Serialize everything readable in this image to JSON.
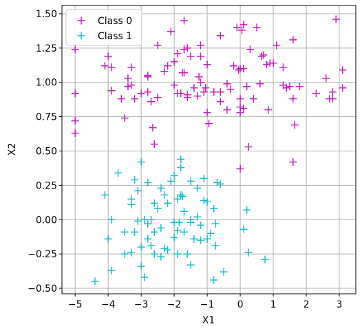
{
  "chart_data": {
    "type": "scatter",
    "title": "",
    "xlabel": "X1",
    "ylabel": "X2",
    "xlim": [
      -5.4,
      3.5
    ],
    "ylim": [
      -0.54,
      1.56
    ],
    "xticks": [
      -5,
      -4,
      -3,
      -2,
      -1,
      0,
      1,
      2,
      3
    ],
    "yticks": [
      -0.5,
      -0.25,
      0.0,
      0.25,
      0.5,
      0.75,
      1.0,
      1.25,
      1.5
    ],
    "xtick_labels": [
      "−5",
      "−4",
      "−3",
      "−2",
      "−1",
      "0",
      "1",
      "2",
      "3"
    ],
    "ytick_labels": [
      "−0.50",
      "−0.25",
      "0.00",
      "0.25",
      "0.50",
      "0.75",
      "1.00",
      "1.25",
      "1.50"
    ],
    "grid": true,
    "legend_position": "top-left",
    "marker": "+",
    "series": [
      {
        "name": "Class 0",
        "color": "#c31fbf",
        "points": [
          [
            -5.0,
            1.24
          ],
          [
            -5.0,
            0.92
          ],
          [
            -5.0,
            0.72
          ],
          [
            -5.0,
            0.63
          ],
          [
            -4.1,
            1.12
          ],
          [
            -4.0,
            1.19
          ],
          [
            -3.9,
            1.11
          ],
          [
            -3.9,
            0.94
          ],
          [
            -3.6,
            0.88
          ],
          [
            -3.5,
            0.74
          ],
          [
            -3.4,
            1.03
          ],
          [
            -3.3,
            1.11
          ],
          [
            -3.3,
            0.98
          ],
          [
            -3.4,
            0.97
          ],
          [
            -3.2,
            0.88
          ],
          [
            -3.0,
            0.92
          ],
          [
            -2.8,
            1.05
          ],
          [
            -2.8,
            1.04
          ],
          [
            -2.8,
            0.93
          ],
          [
            -2.7,
            0.86
          ],
          [
            -2.65,
            0.67
          ],
          [
            -2.6,
            0.55
          ],
          [
            -2.5,
            1.27
          ],
          [
            -2.5,
            0.89
          ],
          [
            -2.3,
            1.08
          ],
          [
            -2.2,
            1.12
          ],
          [
            -2.1,
            1.37
          ],
          [
            -2.0,
            1.15
          ],
          [
            -2.0,
            0.98
          ],
          [
            -1.9,
            1.21
          ],
          [
            -1.9,
            0.92
          ],
          [
            -1.8,
            0.92
          ],
          [
            -1.7,
            1.45
          ],
          [
            -1.7,
            1.24
          ],
          [
            -1.75,
            1.07
          ],
          [
            -1.7,
            1.07
          ],
          [
            -1.6,
            0.91
          ],
          [
            -1.6,
            0.89
          ],
          [
            -1.6,
            1.25
          ],
          [
            -1.5,
            1.19
          ],
          [
            -1.4,
            0.96
          ],
          [
            -1.3,
            0.9
          ],
          [
            -1.2,
            1.27
          ],
          [
            -1.2,
            1.19
          ],
          [
            -1.2,
            1.0
          ],
          [
            -1.25,
            1.04
          ],
          [
            -1.1,
            0.93
          ],
          [
            -1.05,
            0.96
          ],
          [
            -1.0,
            1.13
          ],
          [
            -1.0,
            0.78
          ],
          [
            -0.95,
            0.7
          ],
          [
            -0.8,
            0.93
          ],
          [
            -0.6,
            1.34
          ],
          [
            -0.6,
            0.93
          ],
          [
            -0.6,
            0.86
          ],
          [
            -0.4,
            0.99
          ],
          [
            -0.4,
            0.8
          ],
          [
            -0.3,
            0.95
          ],
          [
            -0.2,
            1.12
          ],
          [
            -0.1,
            1.4
          ],
          [
            -0.05,
            1.09
          ],
          [
            0.0,
            1.1
          ],
          [
            0.0,
            0.88
          ],
          [
            0.0,
            0.82
          ],
          [
            0.0,
            0.78
          ],
          [
            0.05,
            1.38
          ],
          [
            0.1,
            1.42
          ],
          [
            0.0,
            0.37
          ],
          [
            0.1,
            0.81
          ],
          [
            0.1,
            1.1
          ],
          [
            0.2,
            0.97
          ],
          [
            0.25,
            0.53
          ],
          [
            0.3,
            1.24
          ],
          [
            0.4,
            0.88
          ],
          [
            0.5,
            1.4
          ],
          [
            0.6,
            0.99
          ],
          [
            0.65,
            1.19
          ],
          [
            0.7,
            1.2
          ],
          [
            0.8,
            1.13
          ],
          [
            0.9,
            1.14
          ],
          [
            0.85,
            0.8
          ],
          [
            1.0,
            1.14
          ],
          [
            1.1,
            1.27
          ],
          [
            1.3,
            0.98
          ],
          [
            1.3,
            1.11
          ],
          [
            1.4,
            0.96
          ],
          [
            1.5,
            0.97
          ],
          [
            1.6,
            1.31
          ],
          [
            1.6,
            0.88
          ],
          [
            1.6,
            0.42
          ],
          [
            1.65,
            0.69
          ],
          [
            1.8,
            0.97
          ],
          [
            2.3,
            0.92
          ],
          [
            2.6,
            1.03
          ],
          [
            2.7,
            0.88
          ],
          [
            2.8,
            0.88
          ],
          [
            2.8,
            0.93
          ],
          [
            2.9,
            1.46
          ],
          [
            3.1,
            1.09
          ],
          [
            3.1,
            0.96
          ]
        ]
      },
      {
        "name": "Class 1",
        "color": "#17becf",
        "points": [
          [
            -4.4,
            -0.45
          ],
          [
            -4.1,
            0.18
          ],
          [
            -4.0,
            -0.14
          ],
          [
            -3.9,
            0.0
          ],
          [
            -3.9,
            -0.37
          ],
          [
            -3.7,
            0.34
          ],
          [
            -3.5,
            -0.09
          ],
          [
            -3.5,
            -0.25
          ],
          [
            -3.3,
            0.15
          ],
          [
            -3.3,
            0.11
          ],
          [
            -3.2,
            0.29
          ],
          [
            -3.2,
            -0.09
          ],
          [
            -3.3,
            -0.24
          ],
          [
            -3.1,
            0.21
          ],
          [
            -3.0,
            0.42
          ],
          [
            -3.0,
            -0.2
          ],
          [
            -3.0,
            -0.34
          ],
          [
            -2.9,
            -0.42
          ],
          [
            -2.9,
            0.0
          ],
          [
            -2.8,
            0.27
          ],
          [
            -2.8,
            -0.03
          ],
          [
            -2.8,
            -0.14
          ],
          [
            -2.7,
            -0.19
          ],
          [
            -2.7,
            0.0
          ],
          [
            -2.6,
            0.12
          ],
          [
            -2.6,
            -0.09
          ],
          [
            -2.5,
            0.08
          ],
          [
            -2.4,
            0.23
          ],
          [
            -2.4,
            -0.06
          ],
          [
            -2.4,
            -0.27
          ],
          [
            -2.3,
            0.18
          ],
          [
            -2.2,
            0.12
          ],
          [
            -2.2,
            -0.22
          ],
          [
            -2.1,
            0.28
          ],
          [
            -2.0,
            0.32
          ],
          [
            -2.0,
            -0.02
          ],
          [
            -2.0,
            -0.13
          ],
          [
            -1.9,
            0.15
          ],
          [
            -1.9,
            -0.25
          ],
          [
            -1.85,
            -0.02
          ],
          [
            -1.8,
            0.44
          ],
          [
            -1.8,
            0.38
          ],
          [
            -1.8,
            0.18
          ],
          [
            -1.75,
            0.17
          ],
          [
            -1.7,
            0.06
          ],
          [
            -1.7,
            -0.09
          ],
          [
            -1.6,
            -0.25
          ],
          [
            -1.5,
            0.28
          ],
          [
            -1.5,
            0.0
          ],
          [
            -1.5,
            -0.33
          ],
          [
            -1.4,
            -0.14
          ],
          [
            -1.3,
            0.23
          ],
          [
            -1.3,
            0.02
          ],
          [
            -1.2,
            -0.04
          ],
          [
            -1.1,
            0.3
          ],
          [
            -1.1,
            0.14
          ],
          [
            -1.0,
            0.13
          ],
          [
            -1.0,
            -0.14
          ],
          [
            -0.8,
            0.08
          ],
          [
            -0.8,
            -0.44
          ],
          [
            -0.7,
            0.27
          ],
          [
            -0.6,
            0.26
          ],
          [
            -0.5,
            -0.38
          ],
          [
            -0.75,
            -0.19
          ],
          [
            -0.75,
            -0.03
          ],
          [
            0.1,
            -0.07
          ],
          [
            0.2,
            0.07
          ],
          [
            0.25,
            -0.24
          ],
          [
            0.75,
            -0.29
          ],
          [
            -1.5,
            -0.02
          ],
          [
            -2.3,
            -0.21
          ],
          [
            -3.1,
            -0.01
          ],
          [
            -1.2,
            -0.15
          ],
          [
            -2.6,
            -0.25
          ],
          [
            -1.9,
            -0.08
          ],
          [
            -0.9,
            -0.1
          ]
        ]
      }
    ]
  }
}
